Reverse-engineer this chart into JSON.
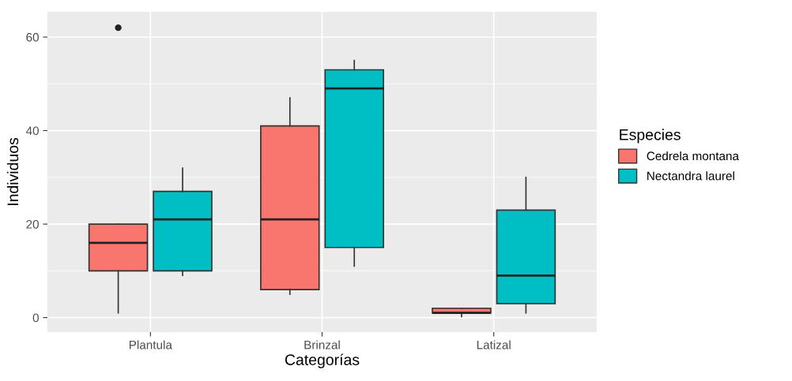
{
  "chart_data": {
    "type": "box",
    "xlabel": "Categorías",
    "ylabel": "Individuos",
    "legend_title": "Especies",
    "categories": [
      "Plantula",
      "Brinzal",
      "Latizal"
    ],
    "ylim": [
      -3.1,
      65.4
    ],
    "yticks": [
      0,
      20,
      40,
      60
    ],
    "grid": true,
    "legend": "right",
    "series": [
      {
        "name": "Cedrela montana",
        "color": "#f8766d",
        "boxes": [
          {
            "low": 1,
            "q1": 10,
            "median": 16,
            "q3": 20,
            "high": 20,
            "outliers": [
              62
            ]
          },
          {
            "low": 5,
            "q1": 6,
            "median": 21,
            "q3": 41,
            "high": 47
          },
          {
            "low": 0.2,
            "q1": 1,
            "median": 1,
            "q3": 2,
            "high": 2
          }
        ]
      },
      {
        "name": "Nectandra laurel",
        "color": "#00bfc4",
        "boxes": [
          {
            "low": 9,
            "q1": 10,
            "median": 21,
            "q3": 27,
            "high": 32
          },
          {
            "low": 11,
            "q1": 15,
            "median": 49,
            "q3": 53,
            "high": 55
          },
          {
            "low": 1,
            "q1": 3,
            "median": 9,
            "q3": 23,
            "high": 30
          }
        ]
      }
    ]
  }
}
